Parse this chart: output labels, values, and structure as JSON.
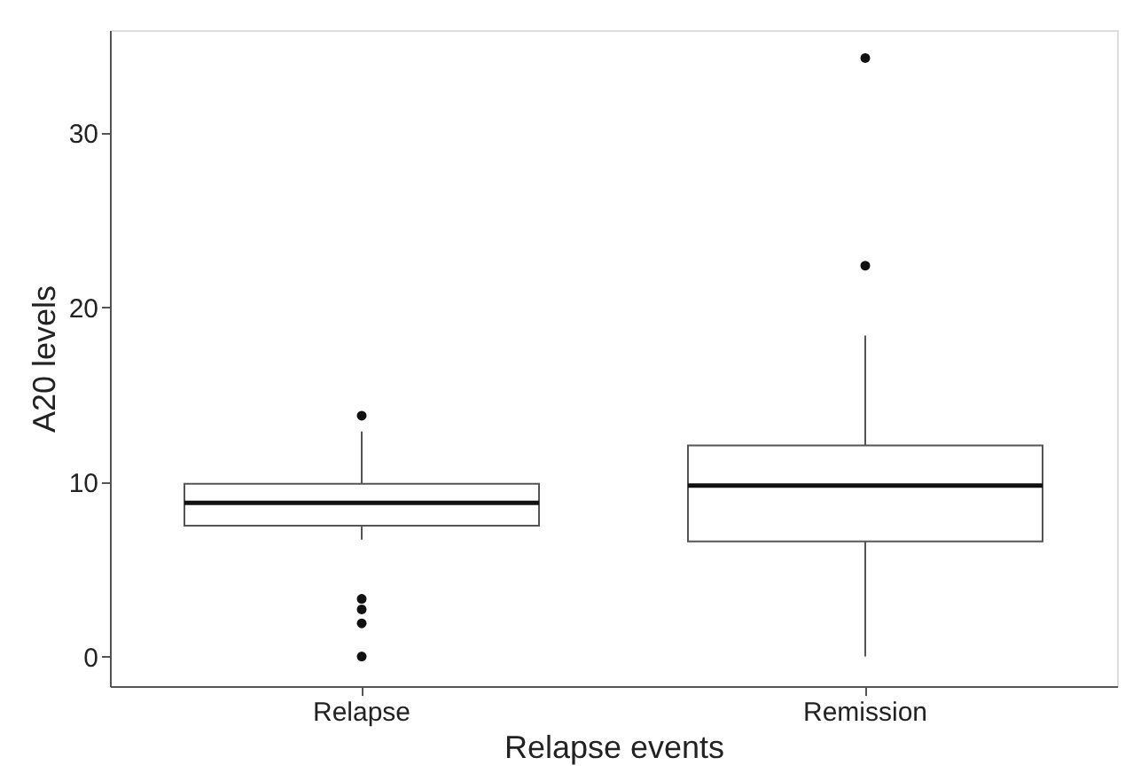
{
  "chart_data": {
    "type": "box",
    "xlabel": "Relapse events",
    "ylabel": "A20 levels",
    "categories": [
      "Relapse",
      "Remission"
    ],
    "boxes": [
      {
        "low": 6.7,
        "q1": 7.5,
        "median": 8.8,
        "q3": 9.9,
        "high": 12.9,
        "outliers": [
          13.8,
          3.3,
          2.7,
          1.9,
          0
        ]
      },
      {
        "low": 0,
        "q1": 6.6,
        "median": 9.8,
        "q3": 12.1,
        "high": 18.4,
        "outliers": [
          34.3,
          22.4
        ]
      }
    ],
    "ylim": [
      -1.7,
      35.9
    ],
    "yticks": [
      0,
      10,
      20,
      30
    ],
    "grid": false
  }
}
